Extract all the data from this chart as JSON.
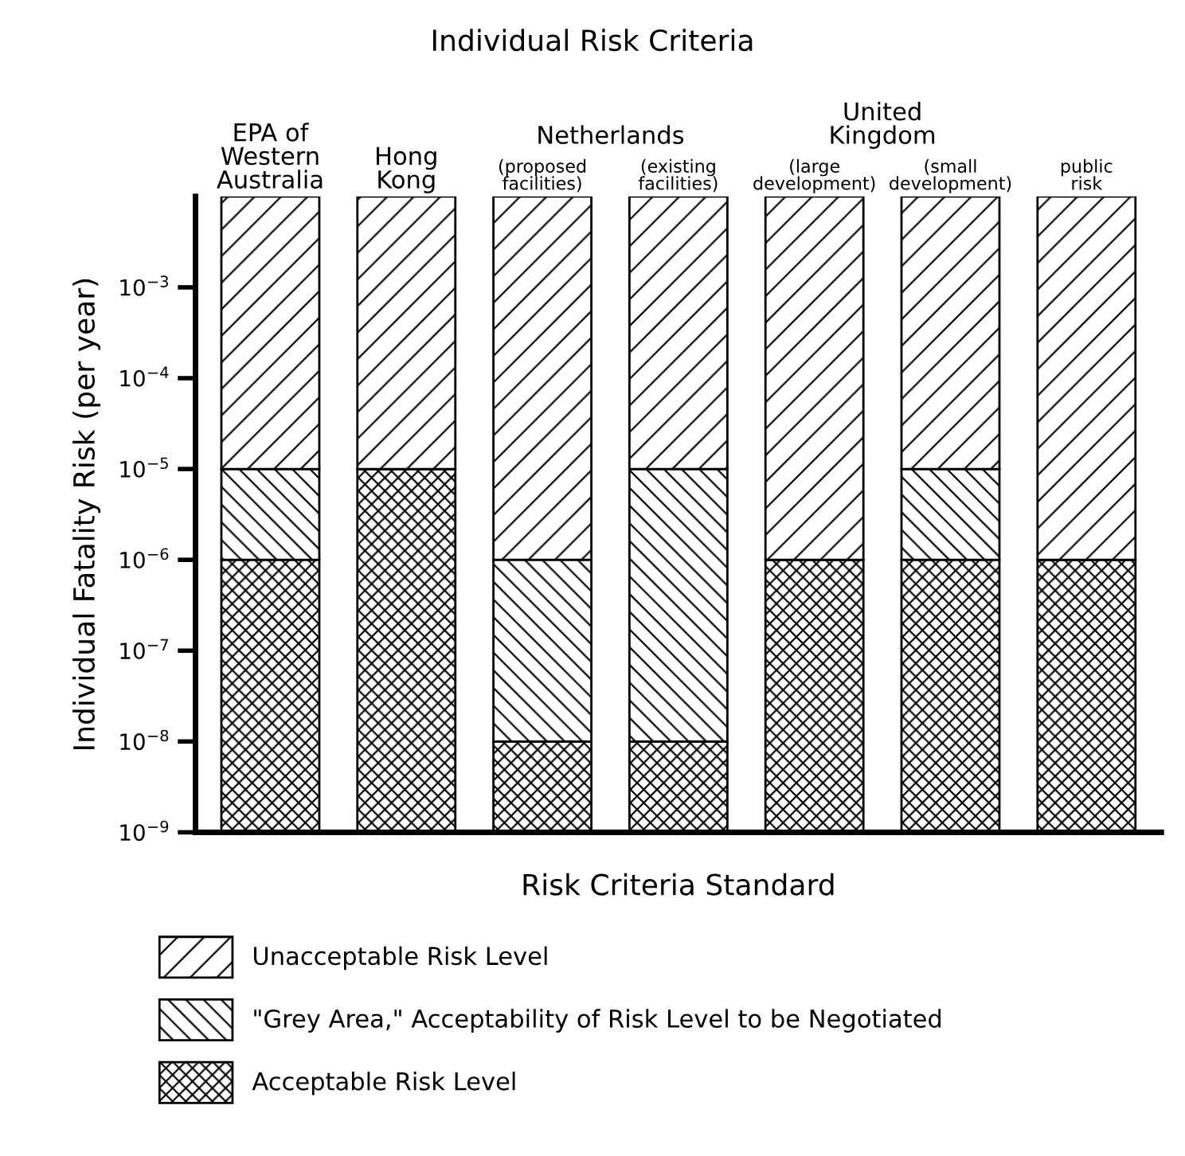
{
  "chart_data": {
    "type": "bar",
    "title": "Individual Risk Criteria",
    "xlabel": "Risk Criteria Standard",
    "ylabel": "Individual Fatality Risk (per year)",
    "categories": [
      "EPA of\nWestern\nAustralia",
      "Hong\nKong",
      "(proposed\nfacilities)",
      "(existing\nfacilities)",
      "(large\ndevelopment)",
      "(small\ndevelopment)",
      "public\nrisk"
    ],
    "annotations": [
      "Netherlands",
      "United\nKingdom"
    ],
    "stacked": true,
    "log": true,
    "grid": false,
    "legend": "bottom",
    "ylim": [
      1e-09,
      0.01
    ],
    "yticks": [
      {
        "value": 1e-09,
        "label": "10$^{−9}$"
      },
      {
        "value": 1e-08,
        "label": "10$^{−8}$"
      },
      {
        "value": 1e-07,
        "label": "10$^{−7}$"
      },
      {
        "value": 1e-06,
        "label": "10$^{−6}$"
      },
      {
        "value": 1e-05,
        "label": "10$^{−5}$"
      },
      {
        "value": 0.0001,
        "label": "10$^{−4}$"
      },
      {
        "value": 0.001,
        "label": "10$^{−3}$"
      }
    ],
    "series": [
      {
        "name": "Acceptable Risk Level",
        "color": "#000000",
        "values": [
          1e-06,
          1e-05,
          1e-08,
          1e-08,
          1e-06,
          1e-06,
          1e-06
        ]
      },
      {
        "name": "\"Grey Area,\" Acceptability of Risk Level to be Negotiated",
        "color": "#000000",
        "values": [
          9e-06,
          null,
          9.9e-07,
          9.99e-06,
          null,
          9e-06,
          null
        ]
      },
      {
        "name": "Unacceptable Risk Level",
        "color": "#000000",
        "values": [
          0.00999,
          0.00999,
          0.009999,
          0.00999,
          0.009999,
          0.00999,
          0.009999
        ]
      }
    ]
  }
}
